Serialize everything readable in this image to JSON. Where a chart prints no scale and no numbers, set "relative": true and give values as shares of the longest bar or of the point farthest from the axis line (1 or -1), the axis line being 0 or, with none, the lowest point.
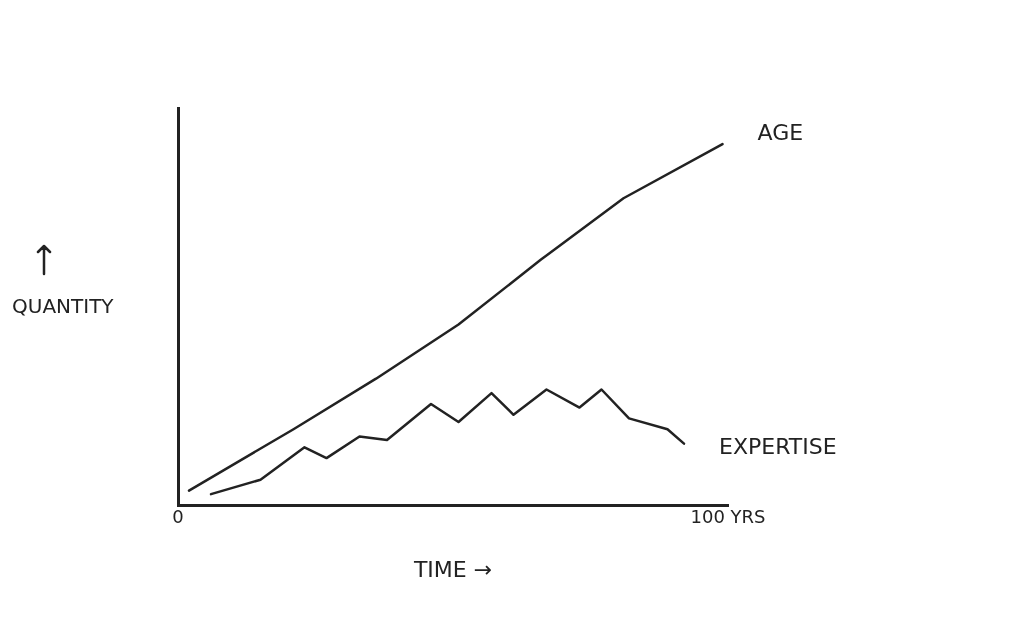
{
  "chart_data": {
    "type": "line",
    "xlabel": "TIME →",
    "ylabel": "QUANTITY",
    "relative": true,
    "xlim": [
      0,
      100
    ],
    "xticks": [
      {
        "value": 0,
        "label": "0"
      },
      {
        "value": 100,
        "label": "100 YRS"
      }
    ],
    "grid": false,
    "legend": false,
    "marker": "none",
    "line_style": "solid",
    "series": [
      {
        "name": "AGE",
        "color": "#222222",
        "x": [
          2,
          21,
          36,
          51,
          66,
          81,
          99
        ],
        "values": [
          0.04,
          0.21,
          0.35,
          0.5,
          0.68,
          0.85,
          1
        ]
      },
      {
        "name": "EXPERTISE",
        "color": "#222222",
        "x": [
          6,
          15,
          23,
          27,
          33,
          38,
          46,
          51,
          57,
          61,
          67,
          73,
          77,
          82,
          89,
          92
        ],
        "values": [
          0.03,
          0.07,
          0.16,
          0.13,
          0.19,
          0.18,
          0.28,
          0.23,
          0.31,
          0.25,
          0.32,
          0.27,
          0.32,
          0.24,
          0.21,
          0.17
        ]
      }
    ]
  }
}
